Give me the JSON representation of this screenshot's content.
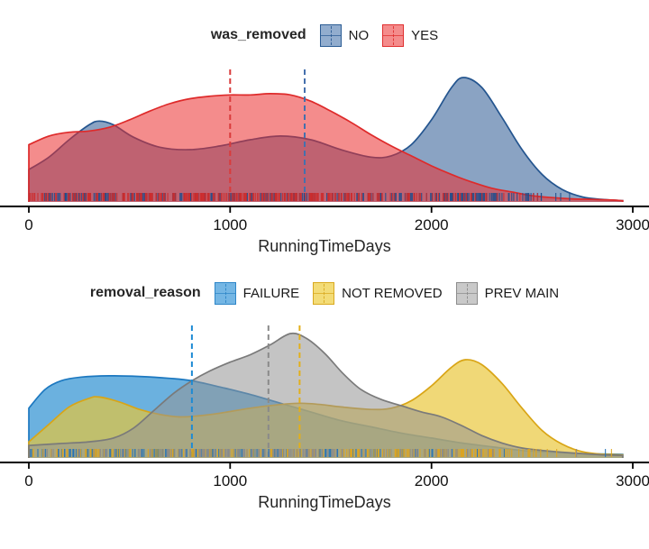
{
  "chart_data": [
    {
      "type": "area",
      "subtype": "kde-density-with-rug-and-mean-lines",
      "legend": {
        "title": "was_removed",
        "position": "top-center",
        "entries": [
          {
            "label": "NO",
            "fill": "#92ADCE",
            "border": "#2B5C94"
          },
          {
            "label": "YES",
            "fill": "#F48C8C",
            "border": "#E03030"
          }
        ]
      },
      "xlabel": "RunningTimeDays",
      "x_ticks": [
        0,
        1000,
        2000,
        3000
      ],
      "x_range": [
        0,
        3000
      ],
      "grid": false,
      "series": [
        {
          "name": "NO",
          "fill_rgba": "rgba(31,78,140,0.52)",
          "stroke": "#24558F",
          "mean": 1370,
          "mean_color": "#4570AD",
          "rug_color": "#1F4E8C",
          "rug_count": 300,
          "rug_seed": 101,
          "curve": [
            [
              0,
              0.26
            ],
            [
              100,
              0.36
            ],
            [
              200,
              0.5
            ],
            [
              300,
              0.62
            ],
            [
              350,
              0.65
            ],
            [
              420,
              0.62
            ],
            [
              520,
              0.52
            ],
            [
              650,
              0.44
            ],
            [
              800,
              0.42
            ],
            [
              950,
              0.45
            ],
            [
              1100,
              0.5
            ],
            [
              1250,
              0.53
            ],
            [
              1400,
              0.5
            ],
            [
              1550,
              0.42
            ],
            [
              1700,
              0.36
            ],
            [
              1800,
              0.37
            ],
            [
              1900,
              0.46
            ],
            [
              2000,
              0.66
            ],
            [
              2100,
              0.92
            ],
            [
              2160,
              1.0
            ],
            [
              2250,
              0.92
            ],
            [
              2350,
              0.68
            ],
            [
              2450,
              0.42
            ],
            [
              2550,
              0.22
            ],
            [
              2650,
              0.1
            ],
            [
              2750,
              0.04
            ],
            [
              2850,
              0.02
            ],
            [
              2950,
              0.01
            ]
          ]
        },
        {
          "name": "YES",
          "fill_rgba": "rgba(235,45,45,0.55)",
          "stroke": "#DE2A2A",
          "mean": 1000,
          "mean_color": "#D93B3B",
          "rug_color": "#CC2C2C",
          "rug_count": 320,
          "rug_seed": 202,
          "curve": [
            [
              0,
              0.46
            ],
            [
              100,
              0.53
            ],
            [
              200,
              0.56
            ],
            [
              300,
              0.57
            ],
            [
              400,
              0.6
            ],
            [
              500,
              0.66
            ],
            [
              600,
              0.73
            ],
            [
              700,
              0.79
            ],
            [
              800,
              0.83
            ],
            [
              900,
              0.85
            ],
            [
              1000,
              0.86
            ],
            [
              1100,
              0.86
            ],
            [
              1200,
              0.87
            ],
            [
              1300,
              0.86
            ],
            [
              1400,
              0.81
            ],
            [
              1500,
              0.73
            ],
            [
              1600,
              0.64
            ],
            [
              1700,
              0.54
            ],
            [
              1800,
              0.45
            ],
            [
              1900,
              0.37
            ],
            [
              2000,
              0.29
            ],
            [
              2100,
              0.22
            ],
            [
              2200,
              0.16
            ],
            [
              2300,
              0.11
            ],
            [
              2400,
              0.08
            ],
            [
              2500,
              0.05
            ],
            [
              2600,
              0.035
            ],
            [
              2700,
              0.025
            ],
            [
              2800,
              0.02
            ],
            [
              2900,
              0.015
            ],
            [
              2950,
              0.01
            ]
          ]
        }
      ]
    },
    {
      "type": "area",
      "subtype": "kde-density-with-rug-and-mean-lines",
      "legend": {
        "title": "removal_reason",
        "position": "top-center",
        "entries": [
          {
            "label": "FAILURE",
            "fill": "#74B6E4",
            "border": "#2E86C8"
          },
          {
            "label": "NOT REMOVED",
            "fill": "#F3DC77",
            "border": "#D9A91F"
          },
          {
            "label": "PREV MAIN",
            "fill": "#C9C9C9",
            "border": "#8C8C8C"
          }
        ]
      },
      "xlabel": "RunningTimeDays",
      "x_ticks": [
        0,
        1000,
        2000,
        3000
      ],
      "x_range": [
        0,
        3000
      ],
      "grid": false,
      "series": [
        {
          "name": "FAILURE",
          "fill_rgba": "rgba(0,120,200,0.58)",
          "stroke": "#1C78C0",
          "mean": 810,
          "mean_color": "#1E8BD4",
          "rug_color": "#2272B8",
          "rug_count": 180,
          "rug_seed": 301,
          "curve": [
            [
              0,
              0.4
            ],
            [
              80,
              0.55
            ],
            [
              160,
              0.62
            ],
            [
              260,
              0.65
            ],
            [
              400,
              0.66
            ],
            [
              550,
              0.655
            ],
            [
              700,
              0.64
            ],
            [
              810,
              0.62
            ],
            [
              950,
              0.57
            ],
            [
              1100,
              0.51
            ],
            [
              1250,
              0.44
            ],
            [
              1400,
              0.37
            ],
            [
              1550,
              0.3
            ],
            [
              1700,
              0.25
            ],
            [
              1850,
              0.2
            ],
            [
              2000,
              0.16
            ],
            [
              2150,
              0.12
            ],
            [
              2300,
              0.09
            ],
            [
              2450,
              0.06
            ],
            [
              2600,
              0.045
            ],
            [
              2750,
              0.035
            ],
            [
              2900,
              0.03
            ],
            [
              2950,
              0.028
            ]
          ]
        },
        {
          "name": "NOT REMOVED",
          "fill_rgba": "rgba(233,197,55,0.68)",
          "stroke": "#D9A516",
          "mean": 1345,
          "mean_color": "#E3AF1A",
          "rug_color": "#DFA41C",
          "rug_count": 230,
          "rug_seed": 402,
          "curve": [
            [
              0,
              0.13
            ],
            [
              100,
              0.27
            ],
            [
              200,
              0.41
            ],
            [
              300,
              0.48
            ],
            [
              350,
              0.49
            ],
            [
              450,
              0.45
            ],
            [
              550,
              0.39
            ],
            [
              650,
              0.35
            ],
            [
              750,
              0.33
            ],
            [
              850,
              0.34
            ],
            [
              950,
              0.36
            ],
            [
              1100,
              0.4
            ],
            [
              1250,
              0.43
            ],
            [
              1350,
              0.44
            ],
            [
              1450,
              0.43
            ],
            [
              1550,
              0.41
            ],
            [
              1700,
              0.39
            ],
            [
              1800,
              0.4
            ],
            [
              1900,
              0.46
            ],
            [
              2000,
              0.58
            ],
            [
              2100,
              0.73
            ],
            [
              2170,
              0.79
            ],
            [
              2250,
              0.75
            ],
            [
              2350,
              0.6
            ],
            [
              2450,
              0.4
            ],
            [
              2550,
              0.22
            ],
            [
              2650,
              0.11
            ],
            [
              2750,
              0.05
            ],
            [
              2850,
              0.03
            ],
            [
              2950,
              0.025
            ]
          ]
        },
        {
          "name": "PREV MAIN",
          "fill_rgba": "rgba(148,148,148,0.55)",
          "stroke": "#7A7A7A",
          "mean": 1190,
          "mean_color": "#8A8A8A",
          "rug_color": "#8C8C8C",
          "rug_count": 180,
          "rug_seed": 503,
          "curve": [
            [
              0,
              0.1
            ],
            [
              150,
              0.115
            ],
            [
              300,
              0.13
            ],
            [
              420,
              0.16
            ],
            [
              520,
              0.24
            ],
            [
              620,
              0.38
            ],
            [
              720,
              0.52
            ],
            [
              810,
              0.62
            ],
            [
              900,
              0.7
            ],
            [
              1000,
              0.77
            ],
            [
              1100,
              0.83
            ],
            [
              1200,
              0.91
            ],
            [
              1300,
              1.0
            ],
            [
              1380,
              0.96
            ],
            [
              1470,
              0.84
            ],
            [
              1560,
              0.68
            ],
            [
              1650,
              0.55
            ],
            [
              1750,
              0.47
            ],
            [
              1850,
              0.42
            ],
            [
              1950,
              0.37
            ],
            [
              2050,
              0.33
            ],
            [
              2150,
              0.26
            ],
            [
              2250,
              0.18
            ],
            [
              2350,
              0.12
            ],
            [
              2450,
              0.08
            ],
            [
              2550,
              0.06
            ],
            [
              2700,
              0.04
            ],
            [
              2850,
              0.025
            ],
            [
              2950,
              0.02
            ]
          ]
        }
      ]
    }
  ]
}
